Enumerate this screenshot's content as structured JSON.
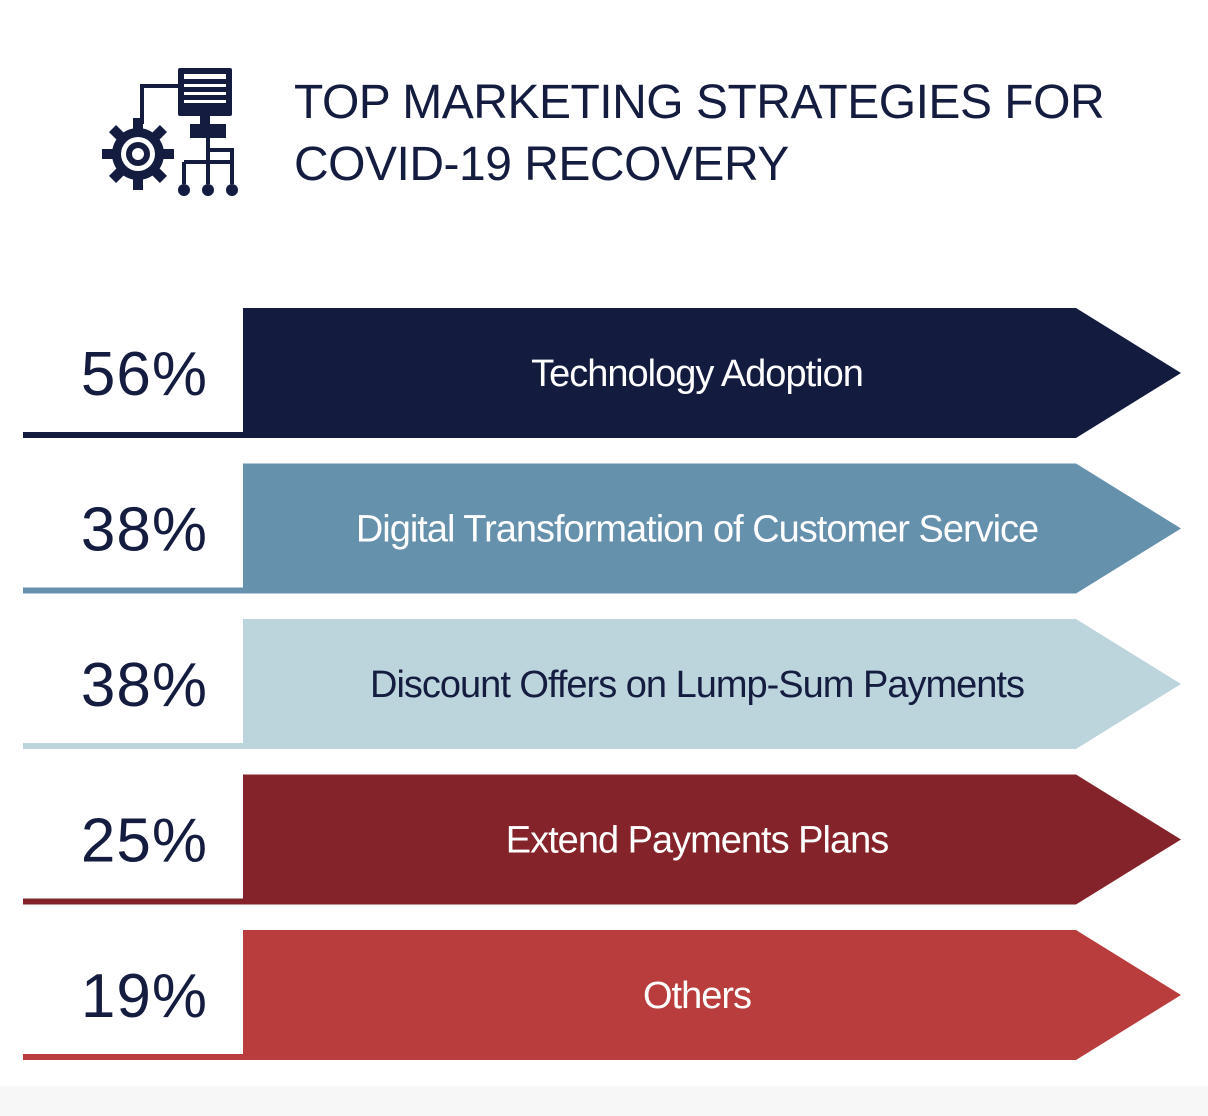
{
  "chart_data": {
    "type": "bar",
    "title_lines": [
      "TOP MARKETING STRATEGIES FOR",
      "COVID-19 RECOVERY"
    ],
    "bars": [
      {
        "label": "Technology Adoption",
        "value": 56,
        "value_label": "56%",
        "color": "#131b3f",
        "text_color": "#ffffff"
      },
      {
        "label": "Digital Transformation of Customer Service",
        "value": 38,
        "value_label": "38%",
        "color": "#6591ac",
        "text_color": "#ffffff"
      },
      {
        "label": "Discount Offers on Lump-Sum Payments",
        "value": 38,
        "value_label": "38%",
        "color": "#bcd4dc",
        "text_color": "#141c3f"
      },
      {
        "label": "Extend Payments Plans",
        "value": 25,
        "value_label": "25%",
        "color": "#84242a",
        "text_color": "#ffffff"
      },
      {
        "label": "Others",
        "value": 19,
        "value_label": "19%",
        "color": "#b93d3d",
        "text_color": "#ffffff"
      }
    ]
  },
  "header": {
    "icon": "gear-computer-network-icon",
    "icon_color": "#141c3f"
  }
}
